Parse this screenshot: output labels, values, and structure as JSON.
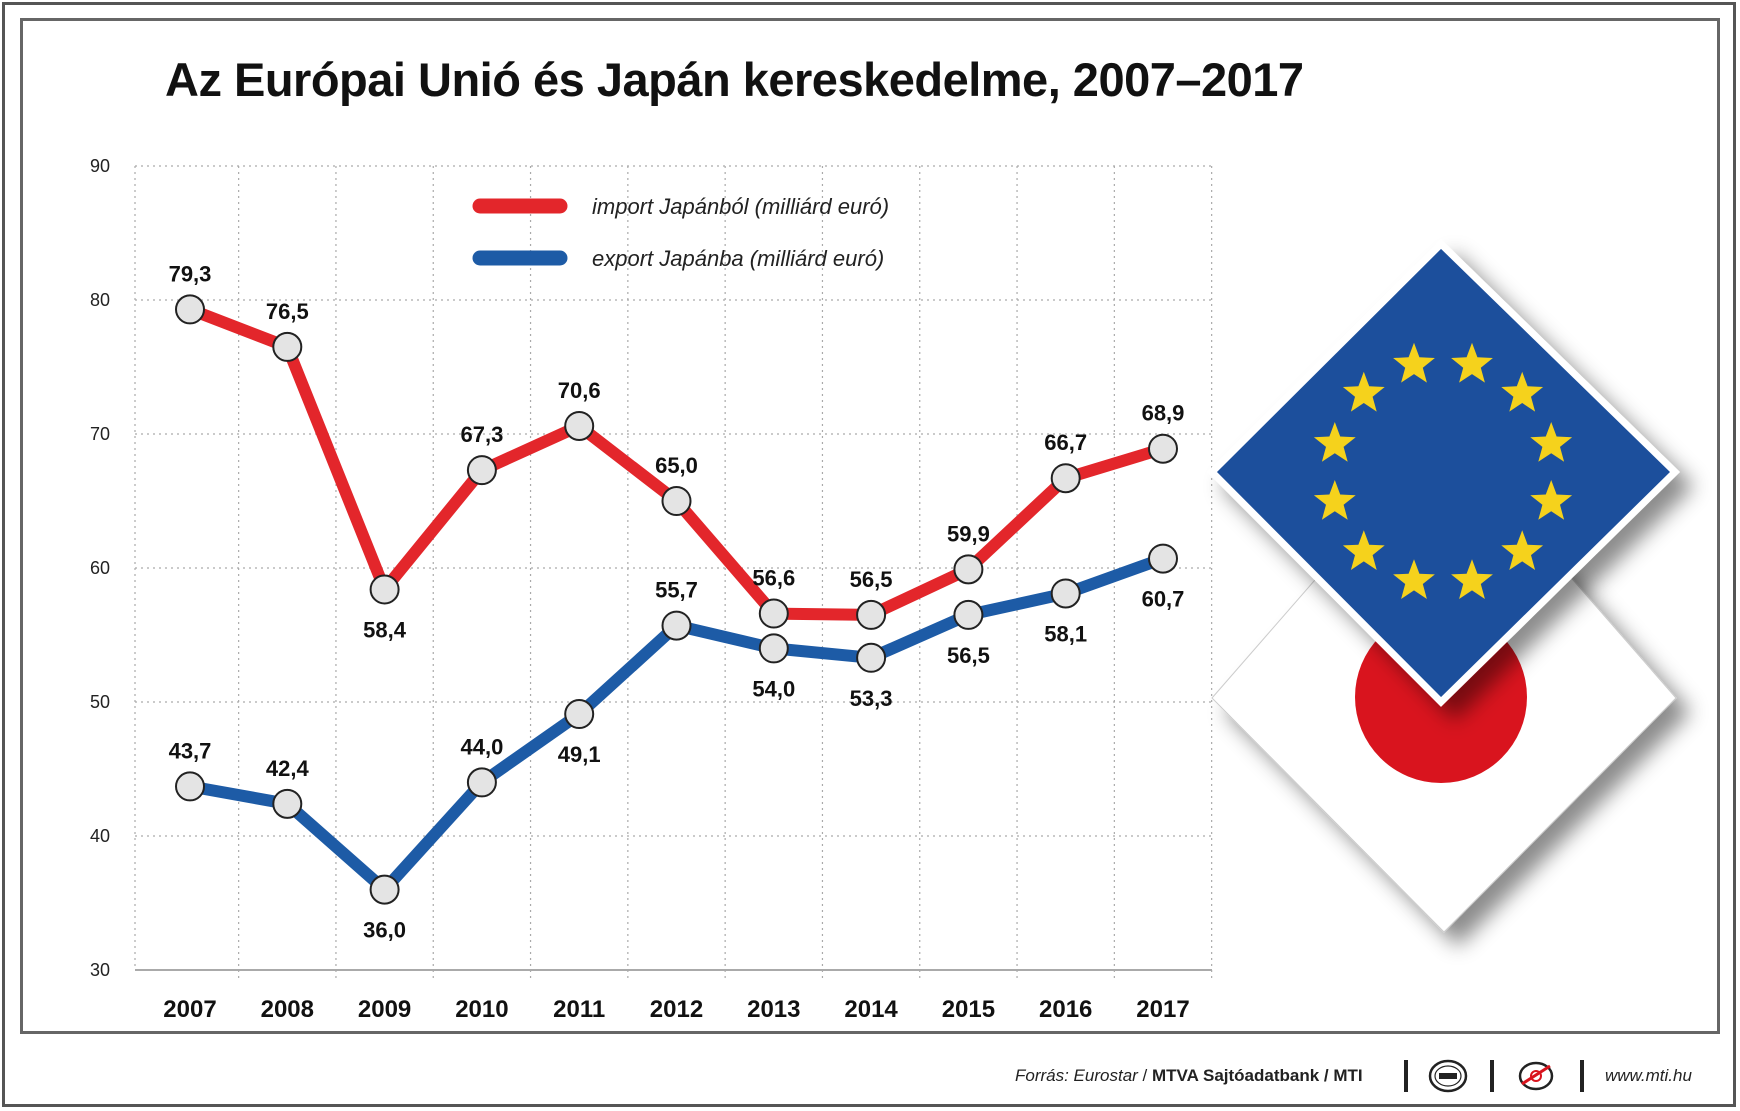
{
  "title": "Az Európai Unió és Japán kereskedelme, 2007–2017",
  "chart_data": {
    "type": "line",
    "title": "Az Európai Unió és Japán kereskedelme, 2007–2017",
    "x": [
      "2007",
      "2008",
      "2009",
      "2010",
      "2011",
      "2012",
      "2013",
      "2014",
      "2015",
      "2016",
      "2017"
    ],
    "ylim": [
      30,
      90
    ],
    "yticks": [
      "30",
      "40",
      "50",
      "60",
      "70",
      "80",
      "90"
    ],
    "grid": "dotted",
    "legend_position": "top-center",
    "series": [
      {
        "name": "import Japánból (milliárd euró)",
        "color": "#e3262b",
        "values": [
          79.3,
          76.5,
          58.4,
          67.3,
          70.6,
          65.0,
          56.6,
          56.5,
          59.9,
          66.7,
          68.9
        ],
        "labels": [
          "79,3",
          "76,5",
          "58,4",
          "67,3",
          "70,6",
          "65,0",
          "56,6",
          "56,5",
          "59,9",
          "66,7",
          "68,9"
        ],
        "label_side": [
          "above",
          "above",
          "below",
          "above",
          "above",
          "above",
          "above",
          "above",
          "above",
          "above",
          "above"
        ]
      },
      {
        "name": "export Japánba (milliárd euró)",
        "color": "#1d5ba6",
        "values": [
          43.7,
          42.4,
          36.0,
          44.0,
          49.1,
          55.7,
          54.0,
          53.3,
          56.5,
          58.1,
          60.7
        ],
        "labels": [
          "43,7",
          "42,4",
          "36,0",
          "44,0",
          "49,1",
          "55,7",
          "54,0",
          "53,3",
          "56,5",
          "58,1",
          "60,7"
        ],
        "label_side": [
          "above",
          "above",
          "below",
          "above",
          "below",
          "above",
          "below",
          "below",
          "below",
          "below",
          "below"
        ]
      }
    ]
  },
  "decorations": {
    "eu_flag_icon": {
      "background": "#1d4f9c",
      "stars": "#f5d21c",
      "star_count": 12
    },
    "japan_flag_icon": {
      "background": "#ffffff",
      "disc": "#d9141e"
    }
  },
  "footer": {
    "source_label": "Forrás: Eurostar",
    "source_sep": " / ",
    "source_org": "MTVA Sajtóadatbank / MTI",
    "website": "www.mti.hu"
  },
  "colors": {
    "grid": "#aaaaaa",
    "marker_fill": "#e4e4e4",
    "marker_stroke": "#222222"
  }
}
